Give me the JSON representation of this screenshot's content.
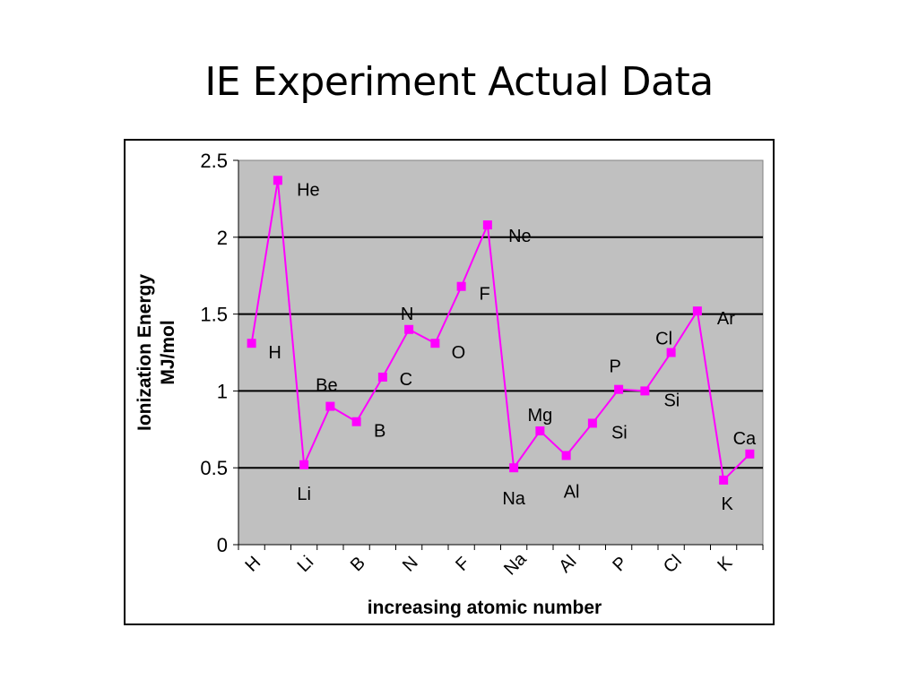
{
  "slide": {
    "title": "IE Experiment Actual Data"
  },
  "chart_data": {
    "type": "line",
    "title": "",
    "xlabel": "increasing atomic number",
    "ylabel_line1": "Ionization Energy",
    "ylabel_line2": "MJ/mol",
    "ylim": [
      0,
      2.5
    ],
    "yticks": [
      "0",
      "0.5",
      "1",
      "1.5",
      "2",
      "2.5"
    ],
    "yticks_values": [
      0,
      0.5,
      1,
      1.5,
      2,
      2.5
    ],
    "grid": true,
    "legend": "none",
    "plot_background": "#C0C0C0",
    "series": [
      {
        "color": "#FF00FF",
        "marker": "square",
        "points": [
          {
            "label": "H",
            "y": 1.31
          },
          {
            "label": "He",
            "y": 2.37
          },
          {
            "label": "Li",
            "y": 0.52
          },
          {
            "label": "Be",
            "y": 0.9
          },
          {
            "label": "B",
            "y": 0.8
          },
          {
            "label": "C",
            "y": 1.09
          },
          {
            "label": "N",
            "y": 1.4
          },
          {
            "label": "O",
            "y": 1.31
          },
          {
            "label": "F",
            "y": 1.68
          },
          {
            "label": "Ne",
            "y": 2.08
          },
          {
            "label": "Na",
            "y": 0.5
          },
          {
            "label": "Mg",
            "y": 0.74
          },
          {
            "label": "Al",
            "y": 0.58
          },
          {
            "label": "Si",
            "y": 0.79
          },
          {
            "label": "P",
            "y": 1.01
          },
          {
            "label": "Si",
            "y": 1.0
          },
          {
            "label": "Cl",
            "y": 1.25
          },
          {
            "label": "Ar",
            "y": 1.52
          },
          {
            "label": "K",
            "y": 0.42
          },
          {
            "label": "Ca",
            "y": 0.59
          }
        ]
      }
    ],
    "x_tick_labels": [
      "H",
      "",
      "Li",
      "",
      "B",
      "",
      "N",
      "",
      "F",
      "",
      "Na",
      "",
      "Al",
      "",
      "P",
      "",
      "Cl",
      "",
      "K",
      ""
    ]
  }
}
